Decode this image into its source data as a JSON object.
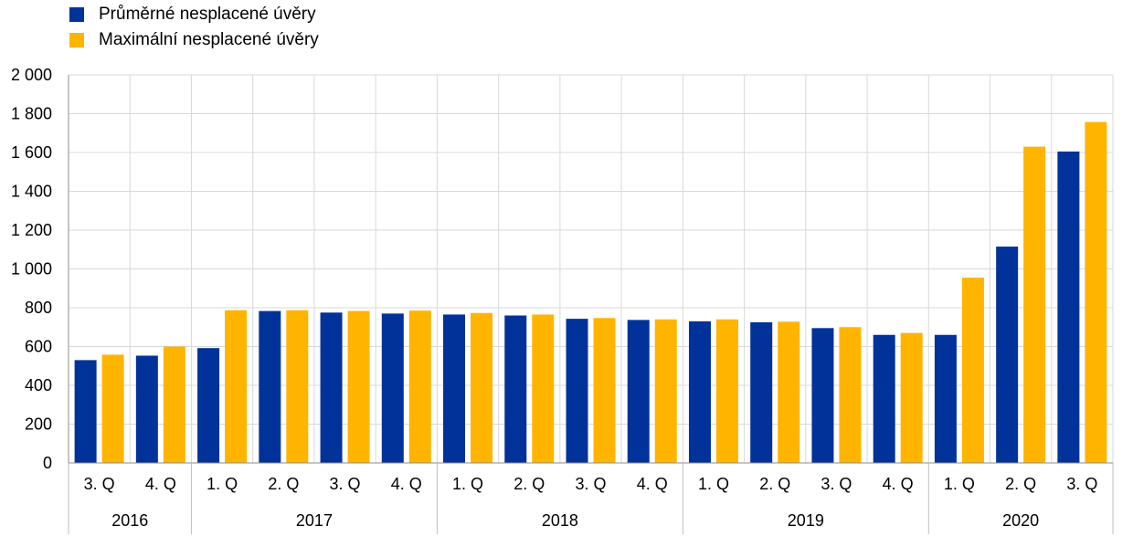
{
  "chart_data": {
    "type": "bar",
    "title": "",
    "xlabel": "",
    "ylabel": "",
    "ylim": [
      0,
      2000
    ],
    "yticks": [
      0,
      200,
      400,
      600,
      800,
      1000,
      1200,
      1400,
      1600,
      1800,
      2000
    ],
    "ytick_labels": [
      "0",
      "200",
      "400",
      "600",
      "800",
      "1 000",
      "1 200",
      "1 400",
      "1 600",
      "1 800",
      "2 000"
    ],
    "grid": true,
    "legend_position": "top-left",
    "categories": [
      "3. Q",
      "4. Q",
      "1. Q",
      "2. Q",
      "3. Q",
      "4. Q",
      "1. Q",
      "2. Q",
      "3. Q",
      "4. Q",
      "1. Q",
      "2. Q",
      "3. Q",
      "4. Q",
      "1. Q",
      "2. Q",
      "3. Q"
    ],
    "years": [
      {
        "label": "2016",
        "count": 2
      },
      {
        "label": "2017",
        "count": 4
      },
      {
        "label": "2018",
        "count": 4
      },
      {
        "label": "2019",
        "count": 4
      },
      {
        "label": "2020",
        "count": 3
      }
    ],
    "series": [
      {
        "name": "Průměrné nesplacené úvěry",
        "color": "#003299",
        "values": [
          530,
          553,
          592,
          783,
          775,
          770,
          765,
          760,
          743,
          737,
          730,
          725,
          695,
          660,
          660,
          1115,
          1605
        ]
      },
      {
        "name": "Maximální nesplacené úvěry",
        "color": "#FFB400",
        "values": [
          558,
          600,
          787,
          787,
          783,
          785,
          773,
          765,
          747,
          740,
          740,
          728,
          700,
          670,
          955,
          1630,
          1757
        ]
      }
    ]
  }
}
